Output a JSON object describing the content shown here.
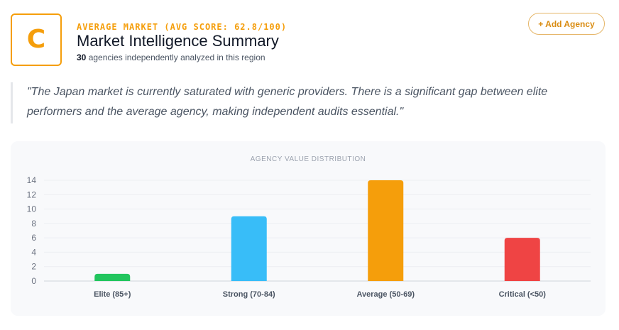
{
  "header": {
    "grade": "C",
    "eyebrow": "AVERAGE MARKET (AVG SCORE: 62.8/100)",
    "title": "Market Intelligence Summary",
    "agency_count": "30",
    "subtitle_rest": "agencies independently analyzed in this region",
    "add_button_label": "+ Add Agency"
  },
  "quote": {
    "text": "\"The Japan market is currently saturated with generic providers. There is a significant gap between elite performers and the average agency, making independent audits essential.\""
  },
  "colors": {
    "accent": "#f59e0b",
    "elite": "#22c55e",
    "strong": "#38bdf8",
    "average": "#f59e0b",
    "critical": "#ef4444"
  },
  "chart_data": {
    "type": "bar",
    "title": "AGENCY VALUE DISTRIBUTION",
    "categories": [
      "Elite (85+)",
      "Strong (70-84)",
      "Average (50-69)",
      "Critical (<50)"
    ],
    "values": [
      1,
      9,
      14,
      6
    ],
    "bar_colors": [
      "#22c55e",
      "#38bdf8",
      "#f59e0b",
      "#ef4444"
    ],
    "ylim": [
      0,
      14
    ],
    "yticks": [
      0,
      2,
      4,
      6,
      8,
      10,
      12,
      14
    ],
    "xlabel": "",
    "ylabel": "",
    "grid": true
  }
}
